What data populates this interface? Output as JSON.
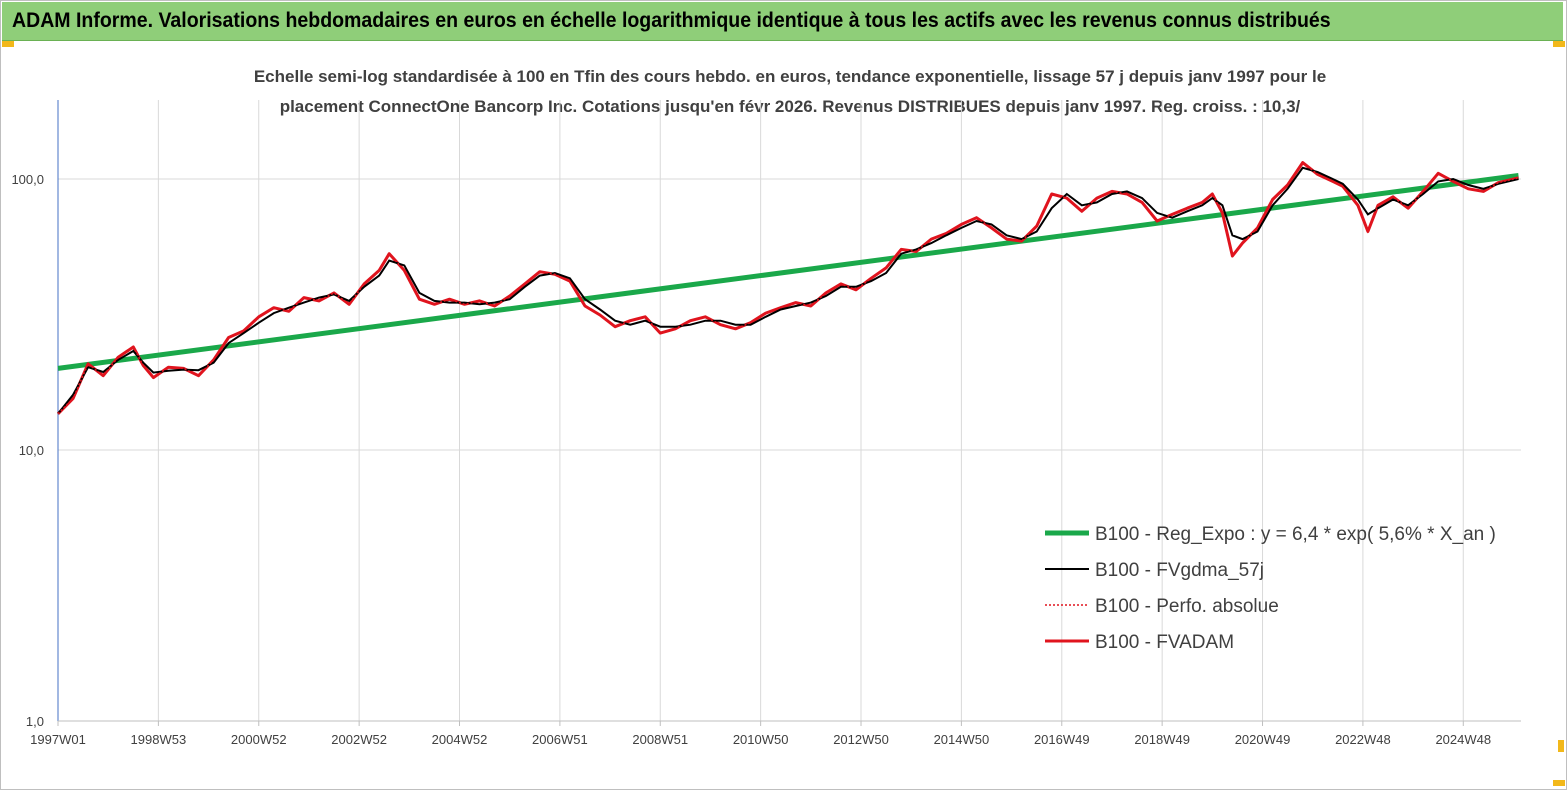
{
  "banner": {
    "title": "ADAM Informe. Valorisations hebdomadaires en euros en échelle logarithmique identique à tous les actifs avec les revenus connus distribués"
  },
  "colors": {
    "banner_bg": "#8fce79",
    "trend": "#1aa84a",
    "fvgdma": "#000000",
    "perfo": "#e0141e",
    "fvadam": "#e0141e",
    "grid": "#d9d9d9",
    "corner_marks": "#f2b81a"
  },
  "chart_data": {
    "type": "line",
    "title_line1": "Echelle semi-log standardisée à 100 en Tfin des cours hebdo. en euros, tendance exponentielle, lissage 57 j depuis janv 1997 pour le",
    "title_line2": "placement ConnectOne Bancorp Inc. Cotations jusqu'en févr 2026. Revenus DISTRIBUES depuis janv 1997. Reg. croiss. : 10,3/",
    "y_scale": "log",
    "ylim": [
      1,
      200
    ],
    "y_ticks": [
      "1,0",
      "10,0",
      "100,0"
    ],
    "y_tick_values": [
      1,
      10,
      100
    ],
    "xlim": [
      1997.0,
      2026.15
    ],
    "x_tick_labels": [
      "1997W01",
      "1998W53",
      "2000W52",
      "2002W52",
      "2004W52",
      "2006W51",
      "2008W51",
      "2010W50",
      "2012W50",
      "2014W50",
      "2016W49",
      "2018W49",
      "2020W49",
      "2022W48",
      "2024W48"
    ],
    "x_tick_years": [
      1997.0,
      1999.0,
      2001.0,
      2003.0,
      2005.0,
      2007.0,
      2009.0,
      2011.0,
      2013.0,
      2015.0,
      2017.0,
      2019.0,
      2021.0,
      2023.0,
      2025.0
    ],
    "grid": "vertical",
    "legend_position": "lower-right",
    "x": [
      1997.0,
      1997.3,
      1997.6,
      1997.9,
      1998.2,
      1998.5,
      1998.7,
      1998.9,
      1999.2,
      1999.5,
      1999.8,
      2000.1,
      2000.4,
      2000.7,
      2001.0,
      2001.3,
      2001.6,
      2001.9,
      2002.2,
      2002.5,
      2002.8,
      2003.1,
      2003.4,
      2003.6,
      2003.9,
      2004.2,
      2004.5,
      2004.8,
      2005.1,
      2005.4,
      2005.7,
      2006.0,
      2006.3,
      2006.6,
      2006.9,
      2007.2,
      2007.5,
      2007.8,
      2008.1,
      2008.4,
      2008.7,
      2009.0,
      2009.3,
      2009.6,
      2009.9,
      2010.2,
      2010.5,
      2010.8,
      2011.1,
      2011.4,
      2011.7,
      2012.0,
      2012.3,
      2012.6,
      2012.9,
      2013.2,
      2013.5,
      2013.8,
      2014.1,
      2014.4,
      2014.7,
      2015.0,
      2015.3,
      2015.6,
      2015.9,
      2016.2,
      2016.5,
      2016.8,
      2017.1,
      2017.4,
      2017.7,
      2018.0,
      2018.3,
      2018.6,
      2018.9,
      2019.2,
      2019.5,
      2019.8,
      2020.0,
      2020.2,
      2020.4,
      2020.6,
      2020.9,
      2021.2,
      2021.5,
      2021.8,
      2022.1,
      2022.4,
      2022.6,
      2022.9,
      2023.1,
      2023.3,
      2023.6,
      2023.9,
      2024.2,
      2024.5,
      2024.8,
      2025.1,
      2025.4,
      2025.7,
      2026.1
    ],
    "series": [
      {
        "name": "B100 - Reg_Expo : y = 6,4 *  exp( 5,6% *  X_an )",
        "style": "trend",
        "x": [
          1997.0,
          2026.1
        ],
        "values": [
          20.0,
          103.0
        ]
      },
      {
        "name": "B100 - FVgdma_57j",
        "style": "smooth",
        "values": [
          13.6,
          16.0,
          20.2,
          19.4,
          21.5,
          23.2,
          21.0,
          19.3,
          19.6,
          19.8,
          19.7,
          21.0,
          24.8,
          27.0,
          29.5,
          32.0,
          33.5,
          35.0,
          36.5,
          37.5,
          35.5,
          40.0,
          44.0,
          50.0,
          48.0,
          38.0,
          35.5,
          35.0,
          35.0,
          34.5,
          35.0,
          36.0,
          40.0,
          44.0,
          45.0,
          43.0,
          36.0,
          33.0,
          30.0,
          29.0,
          30.0,
          28.5,
          28.5,
          29.0,
          30.0,
          30.0,
          29.0,
          29.0,
          31.0,
          33.0,
          34.0,
          35.0,
          37.0,
          40.0,
          40.0,
          42.0,
          45.0,
          53.0,
          55.0,
          58.0,
          62.0,
          66.0,
          70.0,
          68.0,
          62.0,
          60.0,
          64.0,
          78.0,
          88.0,
          80.0,
          82.0,
          88.0,
          90.0,
          85.0,
          75.0,
          72.0,
          76.0,
          80.0,
          85.0,
          80.0,
          62.0,
          60.0,
          64.0,
          80.0,
          92.0,
          110.0,
          106.0,
          100.0,
          96.0,
          84.0,
          74.0,
          78.0,
          84.0,
          80.0,
          88.0,
          98.0,
          100.0,
          95.0,
          92.0,
          96.0,
          100.0
        ]
      },
      {
        "name": "B100 - Perfo. absolue",
        "style": "dotted",
        "values": [
          13.6,
          15.5,
          20.8,
          18.8,
          22.0,
          24.0,
          20.5,
          18.5,
          20.2,
          20.0,
          18.8,
          21.5,
          26.0,
          27.5,
          31.0,
          33.5,
          32.5,
          36.5,
          35.5,
          38.0,
          34.5,
          41.0,
          46.0,
          53.0,
          46.0,
          36.0,
          34.5,
          36.0,
          34.5,
          35.5,
          34.0,
          37.0,
          41.0,
          45.5,
          44.5,
          42.0,
          34.0,
          31.5,
          28.5,
          30.0,
          31.0,
          27.0,
          28.0,
          30.0,
          31.0,
          29.0,
          28.0,
          29.5,
          32.0,
          33.5,
          35.0,
          34.0,
          38.0,
          41.0,
          39.0,
          43.0,
          47.0,
          55.0,
          54.0,
          60.0,
          63.0,
          68.0,
          72.0,
          66.0,
          60.0,
          59.0,
          67.0,
          88.0,
          85.0,
          76.0,
          85.0,
          90.0,
          88.0,
          82.0,
          70.0,
          74.0,
          78.0,
          82.0,
          88.0,
          75.0,
          52.0,
          58.0,
          66.0,
          84.0,
          95.0,
          115.0,
          104.0,
          98.0,
          94.0,
          80.0,
          64.0,
          80.0,
          86.0,
          78.0,
          90.0,
          105.0,
          98.0,
          92.0,
          90.0,
          97.0,
          101.0
        ]
      },
      {
        "name": "B100 - FVADAM",
        "style": "main",
        "values": [
          13.6,
          15.5,
          20.8,
          18.8,
          22.0,
          24.0,
          20.5,
          18.5,
          20.2,
          20.0,
          18.8,
          21.5,
          26.0,
          27.5,
          31.0,
          33.5,
          32.5,
          36.5,
          35.5,
          38.0,
          34.5,
          41.0,
          46.0,
          53.0,
          46.0,
          36.0,
          34.5,
          36.0,
          34.5,
          35.5,
          34.0,
          37.0,
          41.0,
          45.5,
          44.5,
          42.0,
          34.0,
          31.5,
          28.5,
          30.0,
          31.0,
          27.0,
          28.0,
          30.0,
          31.0,
          29.0,
          28.0,
          29.5,
          32.0,
          33.5,
          35.0,
          34.0,
          38.0,
          41.0,
          39.0,
          43.0,
          47.0,
          55.0,
          54.0,
          60.0,
          63.0,
          68.0,
          72.0,
          66.0,
          60.0,
          59.0,
          67.0,
          88.0,
          85.0,
          76.0,
          85.0,
          90.0,
          88.0,
          82.0,
          70.0,
          74.0,
          78.0,
          82.0,
          88.0,
          75.0,
          52.0,
          58.0,
          66.0,
          84.0,
          95.0,
          115.0,
          104.0,
          98.0,
          94.0,
          80.0,
          64.0,
          80.0,
          86.0,
          78.0,
          90.0,
          105.0,
          98.0,
          92.0,
          90.0,
          97.0,
          101.0
        ]
      }
    ]
  }
}
